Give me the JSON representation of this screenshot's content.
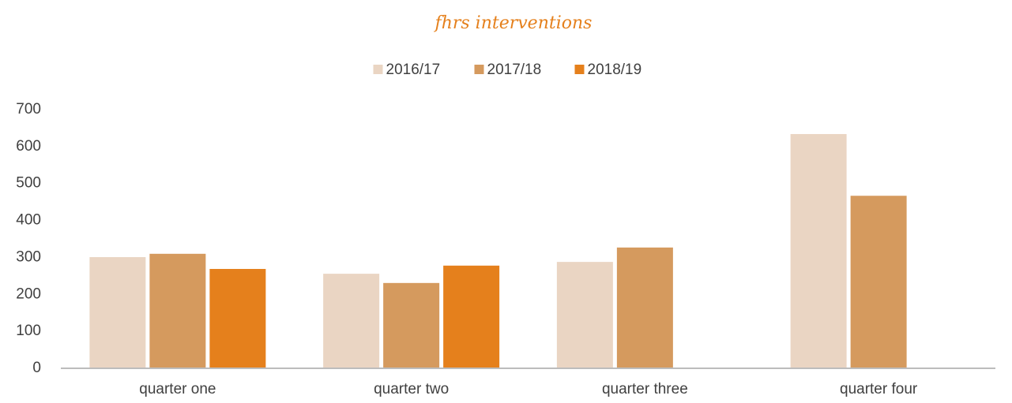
{
  "chart_data": {
    "type": "bar",
    "title": "fhrs interventions",
    "categories": [
      "quarter one",
      "quarter two",
      "quarter three",
      "quarter four"
    ],
    "series": [
      {
        "name": "2016/17",
        "color": "#ead5c3",
        "values": [
          303,
          258,
          290,
          636
        ]
      },
      {
        "name": "2017/18",
        "color": "#d59a5e",
        "values": [
          312,
          233,
          329,
          469
        ]
      },
      {
        "name": "2018/19",
        "color": "#e5801c",
        "values": [
          271,
          280,
          null,
          null
        ]
      }
    ],
    "ylim": [
      0,
      700
    ],
    "yticks": [
      0,
      100,
      200,
      300,
      400,
      500,
      600,
      700
    ],
    "grid": false,
    "legend": "top"
  }
}
